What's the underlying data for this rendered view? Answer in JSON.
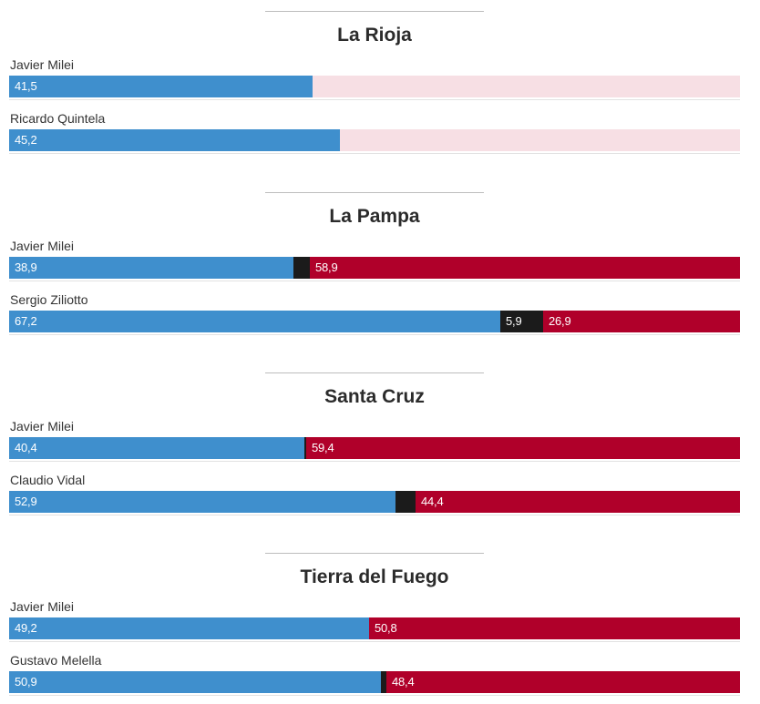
{
  "chart_data": {
    "type": "bar",
    "orientation": "horizontal-stacked",
    "scale": [
      0,
      100
    ],
    "colors": {
      "favor": "#3f8fcd",
      "neutral": "#1b1b1b",
      "contra": "#b0002a",
      "empty": "#f7dfe4"
    },
    "sections": [
      {
        "title": "La Rioja",
        "rows": [
          {
            "name": "Javier Milei",
            "segments": [
              {
                "key": "favor",
                "value": 41.5,
                "label": "41,5"
              },
              {
                "key": "empty",
                "value": 58.5,
                "label": ""
              }
            ]
          },
          {
            "name": "Ricardo Quintela",
            "segments": [
              {
                "key": "favor",
                "value": 45.2,
                "label": "45,2"
              },
              {
                "key": "empty",
                "value": 54.8,
                "label": ""
              }
            ]
          }
        ]
      },
      {
        "title": "La Pampa",
        "rows": [
          {
            "name": "Javier Milei",
            "segments": [
              {
                "key": "favor",
                "value": 38.9,
                "label": "38,9"
              },
              {
                "key": "neutral",
                "value": 2.2,
                "label": ""
              },
              {
                "key": "contra",
                "value": 58.9,
                "label": "58,9"
              }
            ]
          },
          {
            "name": "Sergio Ziliotto",
            "segments": [
              {
                "key": "favor",
                "value": 67.2,
                "label": "67,2"
              },
              {
                "key": "neutral",
                "value": 5.9,
                "label": "5,9"
              },
              {
                "key": "contra",
                "value": 26.9,
                "label": "26,9"
              }
            ]
          }
        ]
      },
      {
        "title": "Santa Cruz",
        "rows": [
          {
            "name": "Javier Milei",
            "segments": [
              {
                "key": "favor",
                "value": 40.4,
                "label": "40,4"
              },
              {
                "key": "neutral",
                "value": 0.2,
                "label": ""
              },
              {
                "key": "contra",
                "value": 59.4,
                "label": "59,4"
              }
            ]
          },
          {
            "name": "Claudio Vidal",
            "segments": [
              {
                "key": "favor",
                "value": 52.9,
                "label": "52,9"
              },
              {
                "key": "neutral",
                "value": 2.7,
                "label": ""
              },
              {
                "key": "contra",
                "value": 44.4,
                "label": "44,4"
              }
            ]
          }
        ]
      },
      {
        "title": "Tierra del Fuego",
        "rows": [
          {
            "name": "Javier Milei",
            "segments": [
              {
                "key": "favor",
                "value": 49.2,
                "label": "49,2"
              },
              {
                "key": "contra",
                "value": 50.8,
                "label": "50,8"
              }
            ]
          },
          {
            "name": "Gustavo Melella",
            "segments": [
              {
                "key": "favor",
                "value": 50.9,
                "label": "50,9"
              },
              {
                "key": "neutral",
                "value": 0.7,
                "label": ""
              },
              {
                "key": "contra",
                "value": 48.4,
                "label": "48,4"
              }
            ]
          }
        ]
      }
    ]
  }
}
